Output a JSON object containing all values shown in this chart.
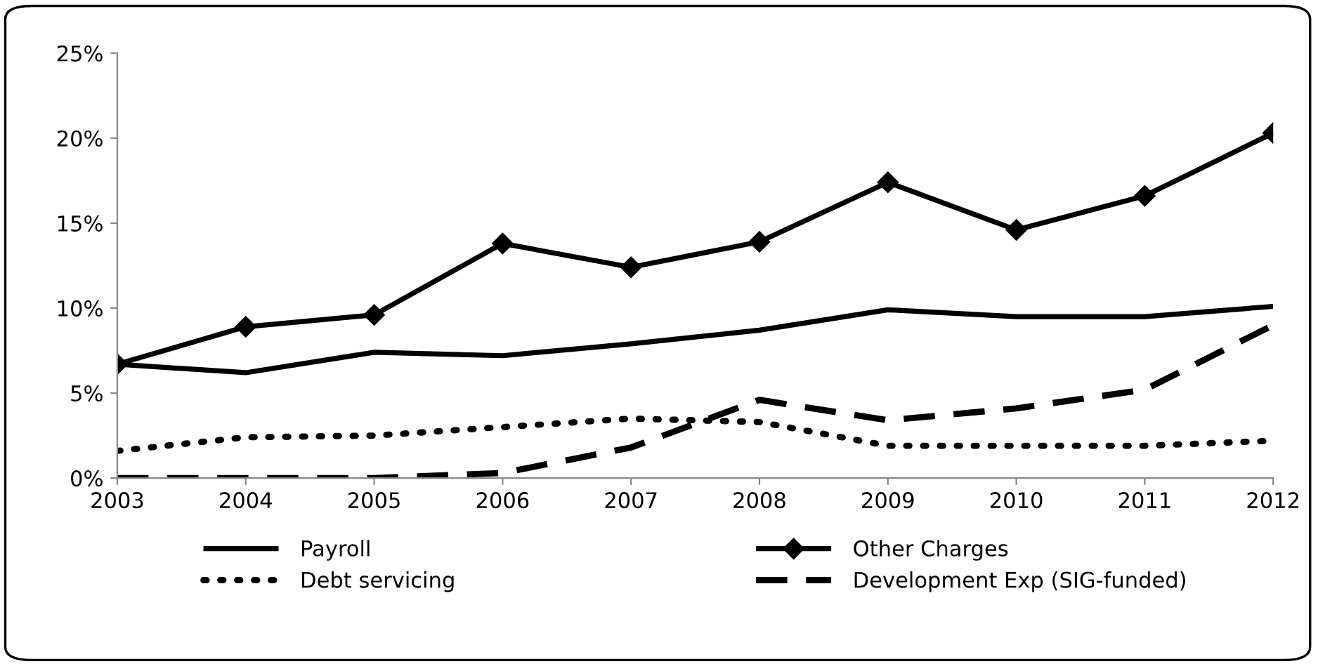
{
  "chart_data": {
    "type": "line",
    "categories": [
      "2003",
      "2004",
      "2005",
      "2006",
      "2007",
      "2008",
      "2009",
      "2010",
      "2011",
      "2012"
    ],
    "ylim": [
      0,
      25
    ],
    "yticks": [
      {
        "value": 0,
        "label": "0%"
      },
      {
        "value": 5,
        "label": "5%"
      },
      {
        "value": 10,
        "label": "10%"
      },
      {
        "value": 15,
        "label": "15%"
      },
      {
        "value": 20,
        "label": "20%"
      },
      {
        "value": 25,
        "label": "25%"
      }
    ],
    "grid": false,
    "legend": "bottom",
    "series": [
      {
        "name": "Payroll",
        "color": "#000000",
        "marker": "none",
        "line_style": "solid",
        "values": [
          6.7,
          6.2,
          7.4,
          7.2,
          7.9,
          8.7,
          9.9,
          9.5,
          9.5,
          10.1
        ]
      },
      {
        "name": "Other Charges",
        "color": "#000000",
        "marker": "diamond",
        "line_style": "solid",
        "values": [
          6.7,
          8.9,
          9.6,
          13.8,
          12.4,
          13.9,
          17.4,
          14.6,
          16.6,
          20.3
        ]
      },
      {
        "name": "Debt servicing",
        "color": "#000000",
        "marker": "none",
        "line_style": "dotted",
        "values": [
          1.6,
          2.4,
          2.5,
          3.0,
          3.5,
          3.3,
          1.9,
          1.9,
          1.9,
          2.2
        ]
      },
      {
        "name": "Development Exp (SIG-funded)",
        "color": "#000000",
        "marker": "none",
        "line_style": "dashed",
        "values": [
          0,
          0,
          0,
          0.3,
          1.8,
          4.6,
          3.4,
          4.1,
          5.2,
          9.0
        ]
      }
    ]
  }
}
